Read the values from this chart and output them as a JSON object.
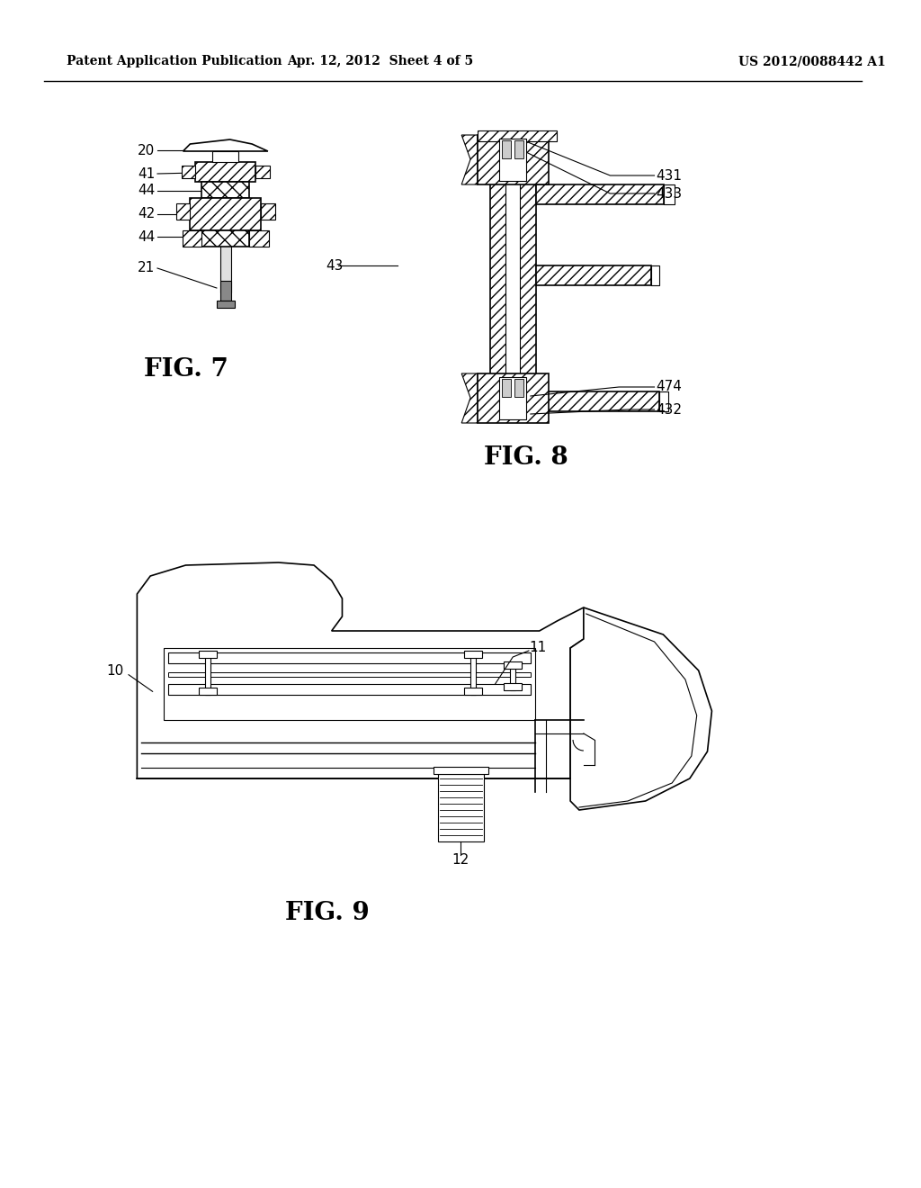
{
  "header_left": "Patent Application Publication",
  "header_mid": "Apr. 12, 2012  Sheet 4 of 5",
  "header_right": "US 2012/0088442 A1",
  "fig7_label": "FIG. 7",
  "fig8_label": "FIG. 8",
  "fig9_label": "FIG. 9",
  "background": "#ffffff",
  "line_color": "#000000"
}
